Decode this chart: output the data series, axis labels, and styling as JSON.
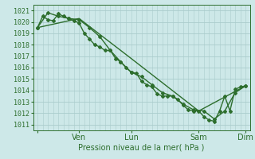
{
  "xlabel": "Pression niveau de la mer( hPa )",
  "background_color": "#cde8e8",
  "grid_color": "#aacccc",
  "line_color": "#2d6e2d",
  "ylim": [
    1010.5,
    1021.5
  ],
  "yticks": [
    1011,
    1012,
    1013,
    1014,
    1015,
    1016,
    1017,
    1018,
    1019,
    1020,
    1021
  ],
  "xtick_positions": [
    0,
    48,
    108,
    186,
    240
  ],
  "xtick_labels": [
    "",
    "Ven",
    "Lun",
    "Sam",
    "Dim"
  ],
  "series1_x": [
    0,
    6,
    12,
    18,
    24,
    30,
    36,
    42,
    48,
    54,
    60,
    66,
    72,
    78,
    84,
    90,
    96,
    102,
    108,
    114,
    120,
    126,
    132,
    138,
    144,
    150,
    156,
    162,
    168,
    174,
    180,
    186,
    192,
    198,
    204,
    210,
    216,
    222,
    228,
    234,
    240
  ],
  "series1_y": [
    1019.5,
    1020.5,
    1020.2,
    1020.1,
    1020.7,
    1020.5,
    1020.3,
    1020.1,
    1019.9,
    1019.0,
    1018.5,
    1018.0,
    1017.8,
    1017.5,
    1017.5,
    1016.8,
    1016.5,
    1016.0,
    1015.6,
    1015.5,
    1014.8,
    1014.5,
    1014.3,
    1013.7,
    1013.5,
    1013.5,
    1013.5,
    1013.2,
    1012.7,
    1012.3,
    1012.2,
    1012.2,
    1011.7,
    1011.4,
    1011.3,
    1012.2,
    1013.5,
    1012.2,
    1014.1,
    1014.3,
    1014.4
  ],
  "series2_x": [
    0,
    12,
    24,
    36,
    48,
    60,
    72,
    84,
    96,
    108,
    120,
    132,
    144,
    156,
    168,
    180,
    192,
    204,
    216,
    228,
    240
  ],
  "series2_y": [
    1019.5,
    1020.8,
    1020.5,
    1020.3,
    1020.2,
    1019.5,
    1018.7,
    1017.5,
    1016.5,
    1015.6,
    1015.2,
    1014.5,
    1013.8,
    1013.5,
    1012.8,
    1012.3,
    1012.2,
    1011.5,
    1012.2,
    1013.8,
    1014.4
  ],
  "series3_x": [
    0,
    48,
    108,
    186,
    240
  ],
  "series3_y": [
    1019.5,
    1020.3,
    1016.8,
    1012.2,
    1014.4
  ],
  "marker_style": "D",
  "marker_size": 2,
  "line_width": 1.0,
  "tick_fontsize": 6,
  "xlabel_fontsize": 7
}
